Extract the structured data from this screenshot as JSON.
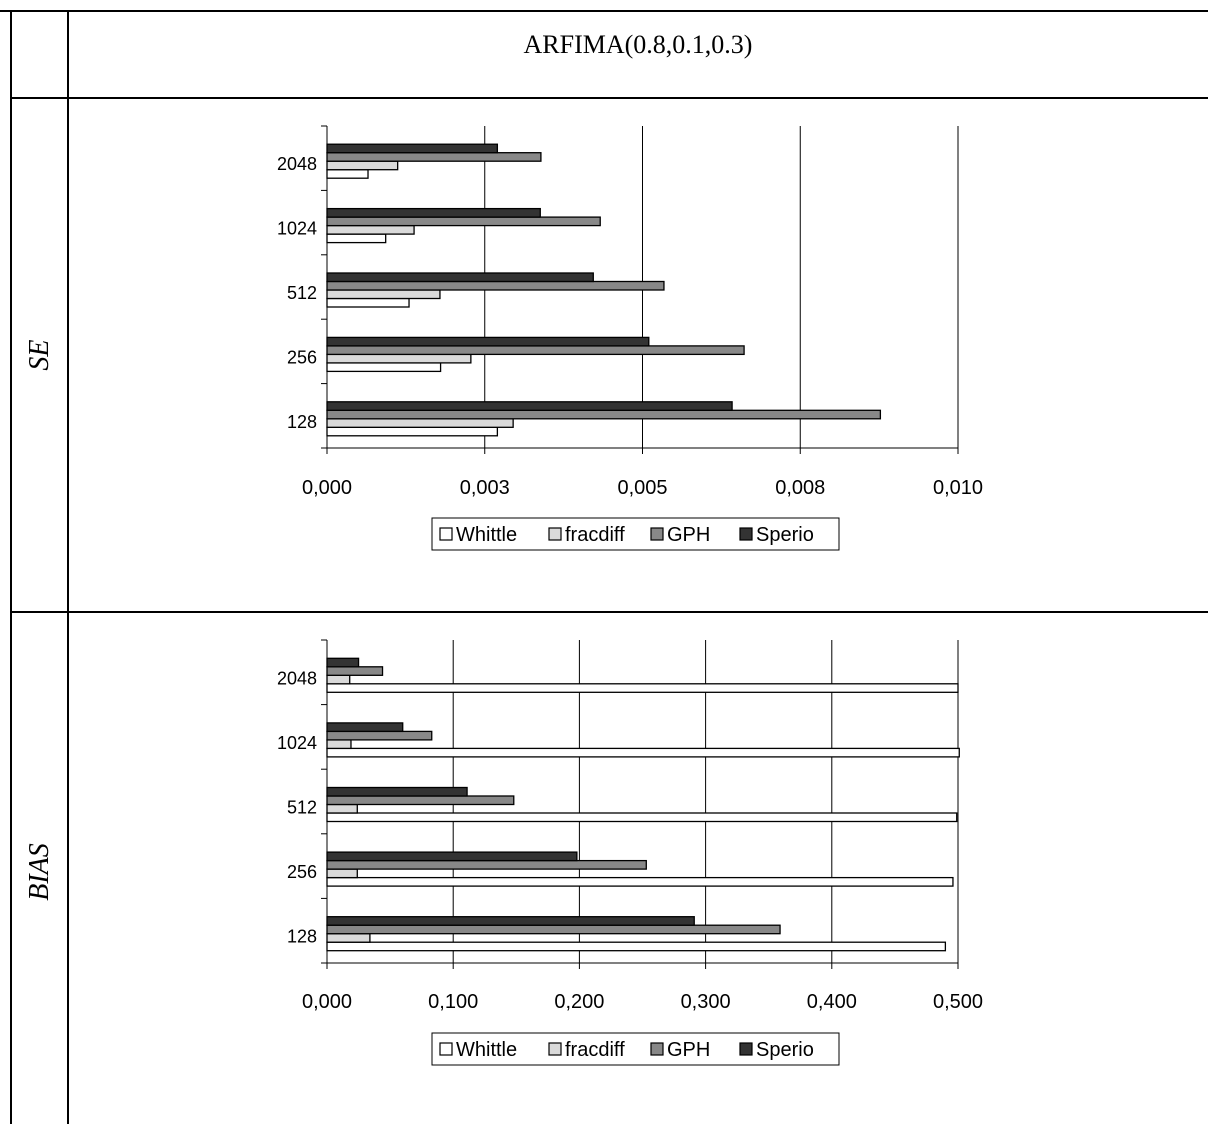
{
  "title": "ARFIMA(0.8,0.1,0.3)",
  "row_labels": {
    "se": "SE",
    "bias": "BIAS"
  },
  "colors": {
    "Whittle": "#ffffff",
    "fracdiff": "#dadada",
    "GPH": "#888888",
    "Sperio": "#333333"
  },
  "chart_data": [
    {
      "type": "bar",
      "orientation": "horizontal",
      "row_label": "SE",
      "categories": [
        "128",
        "256",
        "512",
        "1024",
        "2048"
      ],
      "series": [
        {
          "name": "Whittle",
          "values": [
            0.0027,
            0.0018,
            0.0013,
            0.00093,
            0.00065
          ]
        },
        {
          "name": "fracdiff",
          "values": [
            0.00295,
            0.00228,
            0.00179,
            0.00138,
            0.00112
          ]
        },
        {
          "name": "GPH",
          "values": [
            0.00877,
            0.00661,
            0.00534,
            0.00433,
            0.00339
          ]
        },
        {
          "name": "Sperio",
          "values": [
            0.00642,
            0.0051,
            0.00422,
            0.00338,
            0.0027
          ]
        }
      ],
      "xlim": [
        0,
        0.01
      ],
      "ticks": [
        "0,000",
        "0,003",
        "0,005",
        "0,008",
        "0,010"
      ],
      "grid": true,
      "legend": [
        "Whittle",
        "fracdiff",
        "GPH",
        "Sperio"
      ],
      "legend_position": "bottom"
    },
    {
      "type": "bar",
      "orientation": "horizontal",
      "row_label": "BIAS",
      "categories": [
        "128",
        "256",
        "512",
        "1024",
        "2048"
      ],
      "series": [
        {
          "name": "Whittle",
          "values": [
            0.49,
            0.496,
            0.499,
            0.501,
            0.5
          ]
        },
        {
          "name": "fracdiff",
          "values": [
            0.034,
            0.024,
            0.024,
            0.019,
            0.018
          ]
        },
        {
          "name": "GPH",
          "values": [
            0.359,
            0.253,
            0.148,
            0.083,
            0.044
          ]
        },
        {
          "name": "Sperio",
          "values": [
            0.291,
            0.198,
            0.111,
            0.06,
            0.025
          ]
        }
      ],
      "xlim": [
        0,
        0.5
      ],
      "ticks": [
        "0,000",
        "0,100",
        "0,200",
        "0,300",
        "0,400",
        "0,500"
      ],
      "grid": true,
      "legend": [
        "Whittle",
        "fracdiff",
        "GPH",
        "Sperio"
      ],
      "legend_position": "bottom"
    }
  ]
}
